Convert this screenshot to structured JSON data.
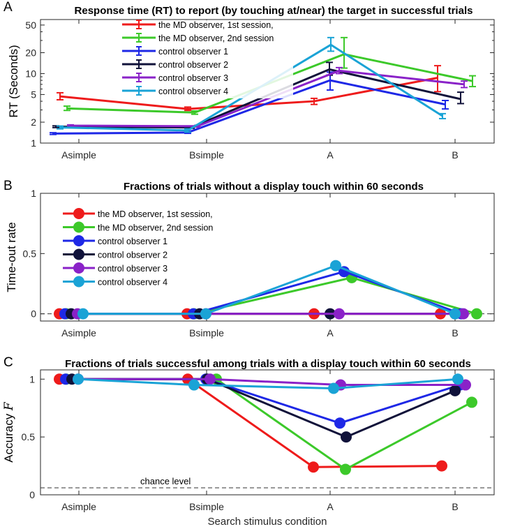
{
  "chart_data": [
    {
      "panel": "A",
      "type": "line",
      "title": "Response time (RT) to report (by touching at/near) the target in successful trials",
      "ylabel": "RT (Seconds)",
      "xlabel": "",
      "yscale": "log",
      "ylim": [
        1,
        60
      ],
      "yticks": [
        1,
        2,
        5,
        10,
        20,
        50
      ],
      "categories": [
        "Asimple",
        "Bsimple",
        "A",
        "B"
      ],
      "legend_position": "top-left",
      "series": [
        {
          "name": "the MD observer, 1st session,",
          "color": "#ee1b1b",
          "values": [
            4.7,
            3.1,
            4.0,
            8.7
          ],
          "err_low": [
            4.2,
            2.95,
            3.6,
            5.5
          ],
          "err_high": [
            5.3,
            3.3,
            4.4,
            13.0
          ]
        },
        {
          "name": "the MD observer, 2nd session",
          "color": "#3cc92a",
          "values": [
            3.15,
            2.75,
            19.0,
            7.8
          ],
          "err_low": [
            2.95,
            2.6,
            12.0,
            6.5
          ],
          "err_high": [
            3.4,
            2.9,
            33.0,
            9.3
          ]
        },
        {
          "name": "control observer 1",
          "color": "#1e28e6",
          "values": [
            1.37,
            1.42,
            8.0,
            3.6
          ],
          "err_low": [
            1.33,
            1.38,
            5.8,
            3.1
          ],
          "err_high": [
            1.41,
            1.47,
            10.5,
            4.1
          ]
        },
        {
          "name": "control observer 2",
          "color": "#10123a",
          "values": [
            1.72,
            1.68,
            11.5,
            4.3
          ],
          "err_low": [
            1.67,
            1.63,
            9.5,
            3.7
          ],
          "err_high": [
            1.77,
            1.73,
            14.5,
            5.4
          ]
        },
        {
          "name": "control observer 3",
          "color": "#8a22c8",
          "values": [
            1.78,
            1.75,
            11.0,
            7.0
          ],
          "err_low": [
            1.73,
            1.7,
            10.0,
            6.3
          ],
          "err_high": [
            1.83,
            1.8,
            12.2,
            7.8
          ]
        },
        {
          "name": "control observer 4",
          "color": "#1aa3d6",
          "values": [
            1.68,
            1.52,
            26.0,
            2.45
          ],
          "err_low": [
            1.6,
            1.44,
            21.0,
            2.25
          ],
          "err_high": [
            1.76,
            1.6,
            33.0,
            2.65
          ]
        }
      ]
    },
    {
      "panel": "B",
      "type": "line",
      "title": "Fractions of trials without a display touch within 60 seconds",
      "ylabel": "Time-out rate",
      "xlabel": "",
      "ylim": [
        -0.06,
        1
      ],
      "yticks": [
        0,
        0.5,
        1
      ],
      "categories": [
        "Asimple",
        "Bsimple",
        "A",
        "B"
      ],
      "reference_line": 0,
      "legend_position": "left",
      "series": [
        {
          "name": "the MD observer, 1st session,",
          "color": "#ee1b1b",
          "values": [
            0,
            0,
            0,
            0
          ]
        },
        {
          "name": "the MD observer, 2nd session",
          "color": "#3cc92a",
          "values": [
            0,
            0,
            0.3,
            0
          ]
        },
        {
          "name": "control observer 1",
          "color": "#1e28e6",
          "values": [
            0,
            0,
            0.35,
            0
          ]
        },
        {
          "name": "control observer 2",
          "color": "#10123a",
          "values": [
            0,
            0,
            0,
            0
          ]
        },
        {
          "name": "control observer 3",
          "color": "#8a22c8",
          "values": [
            0,
            0,
            0,
            0
          ]
        },
        {
          "name": "control observer 4",
          "color": "#1aa3d6",
          "values": [
            0,
            0,
            0.4,
            0
          ]
        }
      ]
    },
    {
      "panel": "C",
      "type": "line",
      "title": "Fractions of trials successful among trials with a display touch within 60 seconds",
      "ylabel": "Accuracy",
      "ylabel_symbol": "F",
      "xlabel": "Search stimulus condition",
      "ylim": [
        0,
        1.08
      ],
      "yticks": [
        0,
        0.5,
        1
      ],
      "categories": [
        "Asimple",
        "Bsimple",
        "A",
        "B"
      ],
      "chance_level": 0.06,
      "chance_label": "chance level",
      "series": [
        {
          "name": "the MD observer, 1st session,",
          "color": "#ee1b1b",
          "values": [
            1.0,
            1.0,
            0.24,
            0.25
          ]
        },
        {
          "name": "the MD observer, 2nd session",
          "color": "#3cc92a",
          "values": [
            1.0,
            1.0,
            0.22,
            0.8
          ]
        },
        {
          "name": "control observer 1",
          "color": "#1e28e6",
          "values": [
            1.0,
            1.0,
            0.62,
            0.95
          ]
        },
        {
          "name": "control observer 2",
          "color": "#10123a",
          "values": [
            1.0,
            1.0,
            0.5,
            0.9
          ]
        },
        {
          "name": "control observer 3",
          "color": "#8a22c8",
          "values": [
            1.0,
            1.0,
            0.95,
            0.95
          ]
        },
        {
          "name": "control observer 4",
          "color": "#1aa3d6",
          "values": [
            1.0,
            0.95,
            0.92,
            1.0
          ]
        }
      ]
    }
  ]
}
